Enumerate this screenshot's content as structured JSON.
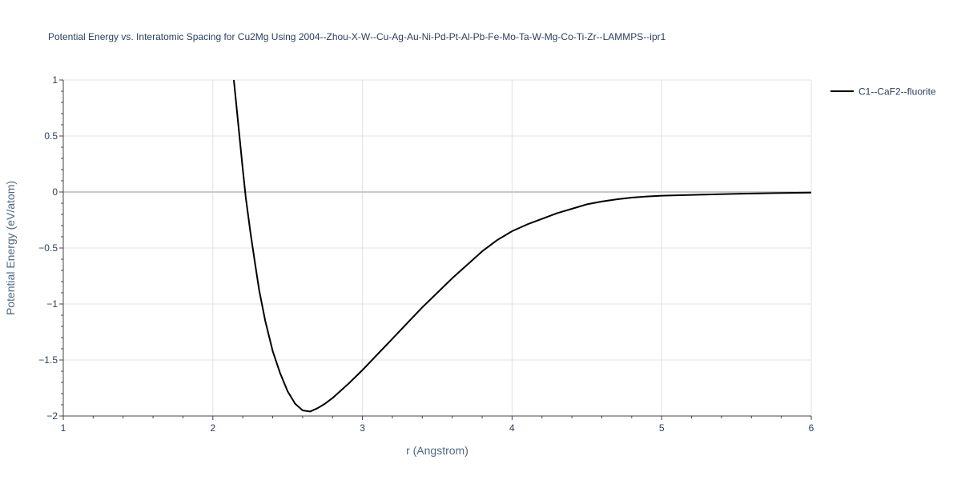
{
  "chart_data": {
    "type": "line",
    "title": "Potential Energy vs. Interatomic Spacing for Cu2Mg Using 2004--Zhou-X-W--Cu-Ag-Au-Ni-Pd-Pt-Al-Pb-Fe-Mo-Ta-W-Mg-Co-Ti-Zr--LAMMPS--ipr1",
    "xlabel": "r (Angstrom)",
    "ylabel": "Potential Energy (eV/atom)",
    "xlim": [
      1,
      6
    ],
    "ylim": [
      -2,
      1
    ],
    "xticks": [
      1,
      2,
      3,
      4,
      5,
      6
    ],
    "xtick_labels": [
      "1",
      "2",
      "3",
      "4",
      "5",
      "6"
    ],
    "yticks": [
      1,
      0.5,
      0,
      -0.5,
      -1,
      -1.5,
      -2
    ],
    "ytick_labels": [
      "1",
      "0.5",
      "0",
      "−0.5",
      "−1",
      "−1.5",
      "−2"
    ],
    "grid": true,
    "legend_position": "top-right",
    "colors": {
      "line": "#000000",
      "grid": "#e1e1e1",
      "zero_line": "#c8c8c8",
      "text": "#2a3f5f",
      "axis_title": "#506784"
    },
    "series": [
      {
        "name": "C1--CaF2--fluorite",
        "x": [
          2.14,
          2.17,
          2.2,
          2.22,
          2.25,
          2.28,
          2.31,
          2.35,
          2.4,
          2.45,
          2.5,
          2.55,
          2.6,
          2.65,
          2.7,
          2.75,
          2.8,
          2.9,
          3.0,
          3.1,
          3.2,
          3.3,
          3.4,
          3.5,
          3.6,
          3.7,
          3.8,
          3.9,
          4.0,
          4.1,
          4.2,
          4.3,
          4.4,
          4.5,
          4.6,
          4.7,
          4.8,
          4.9,
          5.0,
          5.25,
          5.5,
          5.75,
          6.0
        ],
        "y": [
          1.0,
          0.6,
          0.2,
          -0.05,
          -0.35,
          -0.62,
          -0.88,
          -1.15,
          -1.42,
          -1.62,
          -1.78,
          -1.89,
          -1.95,
          -1.96,
          -1.93,
          -1.89,
          -1.84,
          -1.72,
          -1.59,
          -1.45,
          -1.31,
          -1.17,
          -1.03,
          -0.9,
          -0.77,
          -0.65,
          -0.53,
          -0.43,
          -0.35,
          -0.29,
          -0.24,
          -0.19,
          -0.15,
          -0.11,
          -0.085,
          -0.065,
          -0.05,
          -0.04,
          -0.033,
          -0.024,
          -0.016,
          -0.01,
          -0.006
        ]
      }
    ]
  }
}
